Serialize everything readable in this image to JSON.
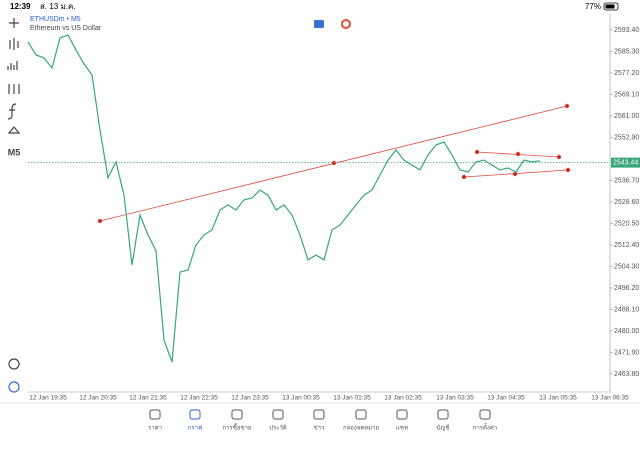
{
  "status_bar": {
    "time": "12:39",
    "date": "ส. 13 ม.ค.",
    "battery": "77%"
  },
  "chart": {
    "type": "line",
    "symbol": "ETHUSDm • M5",
    "description": "Ethereum vs US Dollar",
    "timeframe": "M5",
    "color": "#3aa57a",
    "values": [
      2588.9,
      2584.0,
      2582.9,
      2579.1,
      2590.4,
      2591.5,
      2585.9,
      2580.6,
      2576.5,
      2555.7,
      2537.7,
      2543.7,
      2531.2,
      2504.9,
      2523.7,
      2516.2,
      2510.2,
      2476.6,
      2468.3,
      2502.2,
      2503.0,
      2512.4,
      2516.2,
      2518.1,
      2525.6,
      2527.5,
      2525.6,
      2529.4,
      2530.1,
      2533.1,
      2531.2,
      2525.6,
      2527.5,
      2523.7,
      2516.2,
      2506.8,
      2508.6,
      2506.8,
      2518.1,
      2519.9,
      2523.7,
      2527.5,
      2531.2,
      2533.1,
      2538.8,
      2544.4,
      2548.2,
      2544.4,
      2542.5,
      2540.7,
      2546.3,
      2550.1,
      2551.2,
      2546.3,
      2540.7,
      2539.9,
      2543.7,
      2544.4,
      2542.5,
      2540.7,
      2541.4,
      2539.9,
      2544.4,
      2543.7,
      2544.1
    ],
    "ylim": [
      2463.8,
      2593.4
    ],
    "yticks": [
      {
        "value": 2593.4,
        "label": "2593.40"
      },
      {
        "value": 2585.3,
        "label": "2585.30"
      },
      {
        "value": 2577.2,
        "label": "2577.20"
      },
      {
        "value": 2569.1,
        "label": "2569.10"
      },
      {
        "value": 2561,
        "label": "2561.00"
      },
      {
        "value": 2552.9,
        "label": "2552.90"
      },
      {
        "value": 2536.7,
        "label": "2536.70"
      },
      {
        "value": 2528.6,
        "label": "2528.60"
      },
      {
        "value": 2520.5,
        "label": "2520.50"
      },
      {
        "value": 2512.4,
        "label": "2512.40"
      },
      {
        "value": 2504.3,
        "label": "2504.30"
      },
      {
        "value": 2496.2,
        "label": "2496.20"
      },
      {
        "value": 2488.1,
        "label": "2488.10"
      },
      {
        "value": 2480,
        "label": "2480.00"
      },
      {
        "value": 2471.9,
        "label": "2471.90"
      },
      {
        "value": 2463.8,
        "label": "2463.80"
      }
    ],
    "current_price": {
      "value": 2543.44,
      "label": "2543.44"
    },
    "x_labels": [
      "12 Jan 19:35",
      "12 Jan 20:35",
      "12 Jan 21:35",
      "12 Jan 22:35",
      "12 Jan 23:35",
      "13 Jan 00:35",
      "13 Jan 01:35",
      "13 Jan 02:35",
      "13 Jan 03:35",
      "13 Jan 04:35",
      "13 Jan 05:35",
      "13 Jan 06:35"
    ]
  },
  "nav": {
    "items": [
      "ราคา",
      "กราฟ",
      "การซื้อขาย",
      "ประวัติ",
      "ข่าว",
      "กล่องจดหมาย",
      "แชท",
      "บัญชี",
      "การตั้งค่า"
    ],
    "active_index": 1
  }
}
